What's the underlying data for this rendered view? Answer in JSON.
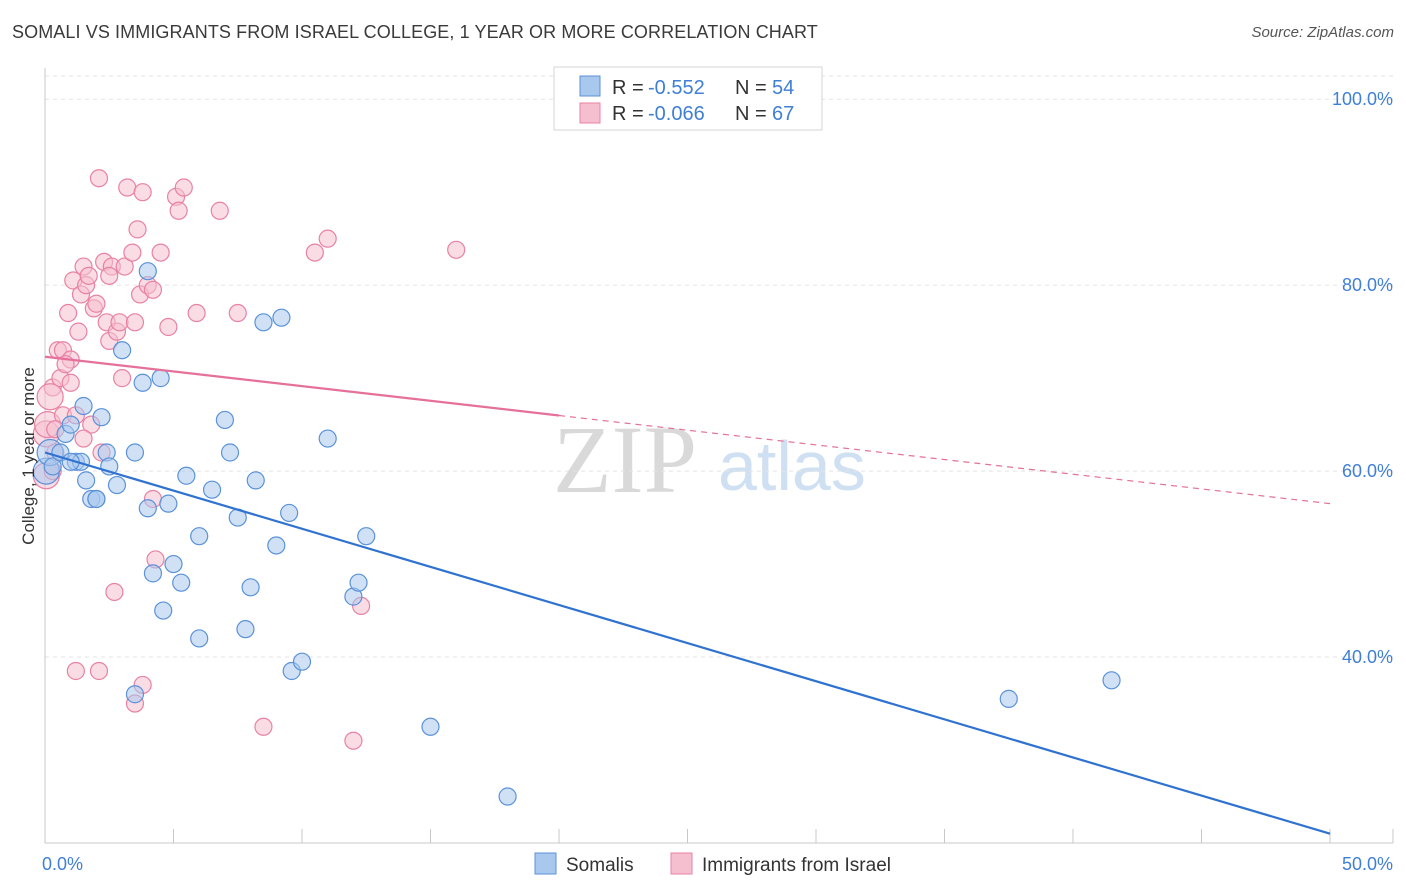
{
  "header": {
    "title": "SOMALI VS IMMIGRANTS FROM ISRAEL COLLEGE, 1 YEAR OR MORE CORRELATION CHART",
    "source": "Source: ZipAtlas.com"
  },
  "watermark": {
    "zip": "ZIP",
    "atlas": "atlas"
  },
  "colors": {
    "somali_fill": "#a9c8ee",
    "somali_stroke": "#5b92d8",
    "somali_line": "#2f72d0",
    "israel_fill": "#f6bfd0",
    "israel_stroke": "#e882a4",
    "israel_line": "#e5709a",
    "tick_text": "#3f7fd6",
    "grid": "#e3e3e3"
  },
  "legend": {
    "rows": [
      {
        "r_label": "R =",
        "r_value": "-0.552",
        "n_label": "N =",
        "n_value": "54"
      },
      {
        "r_label": "R =",
        "r_value": "-0.066",
        "n_label": "N =",
        "n_value": "67"
      }
    ]
  },
  "bottom_legend": {
    "somali": "Somalis",
    "israel": "Immigrants from Israel"
  },
  "chart_data": {
    "type": "scatter",
    "title": "SOMALI VS IMMIGRANTS FROM ISRAEL COLLEGE, 1 YEAR OR MORE CORRELATION CHART",
    "xlabel": "",
    "ylabel": "College, 1 year or more",
    "xlim": [
      0,
      50
    ],
    "ylim": [
      20,
      104
    ],
    "x_tick_labels": [
      "0.0%",
      "50.0%"
    ],
    "y_ticks": [
      40,
      60,
      80,
      100
    ],
    "y_tick_labels": [
      "40.0%",
      "60.0%",
      "80.0%",
      "100.0%"
    ],
    "series": [
      {
        "name": "Somalis",
        "R": -0.552,
        "N": 54,
        "trend": {
          "x": [
            0,
            50
          ],
          "y": [
            62.0,
            21.0
          ],
          "dashed_from": null
        },
        "points": [
          [
            0.05,
            60.0
          ],
          [
            0.2,
            62.0
          ],
          [
            0.3,
            60.5
          ],
          [
            0.6,
            62.0
          ],
          [
            0.8,
            64.0
          ],
          [
            1.0,
            65.0
          ],
          [
            1.2,
            61.0
          ],
          [
            1.4,
            61.0
          ],
          [
            1.5,
            67.0
          ],
          [
            1.6,
            59.0
          ],
          [
            1.8,
            57.0
          ],
          [
            2.0,
            57.0
          ],
          [
            2.2,
            65.8
          ],
          [
            2.4,
            62.0
          ],
          [
            2.5,
            60.5
          ],
          [
            2.8,
            58.5
          ],
          [
            3.0,
            73.0
          ],
          [
            3.5,
            62.0
          ],
          [
            3.8,
            69.5
          ],
          [
            4.0,
            56.0
          ],
          [
            4.2,
            49.0
          ],
          [
            4.5,
            70.0
          ],
          [
            4.6,
            45.0
          ],
          [
            4.8,
            56.5
          ],
          [
            5.0,
            50.0
          ],
          [
            5.3,
            48.0
          ],
          [
            5.5,
            59.5
          ],
          [
            6.0,
            53.0
          ],
          [
            6.5,
            58.0
          ],
          [
            7.0,
            65.5
          ],
          [
            7.2,
            62.0
          ],
          [
            7.5,
            55.0
          ],
          [
            7.8,
            43.0
          ],
          [
            8.0,
            47.5
          ],
          [
            8.2,
            59.0
          ],
          [
            8.5,
            76.0
          ],
          [
            9.0,
            52.0
          ],
          [
            9.2,
            76.5
          ],
          [
            9.5,
            55.5
          ],
          [
            9.6,
            38.5
          ],
          [
            10.0,
            39.5
          ],
          [
            11.0,
            63.5
          ],
          [
            12.0,
            46.5
          ],
          [
            12.2,
            48.0
          ],
          [
            12.5,
            53.0
          ],
          [
            15.0,
            32.5
          ],
          [
            18.0,
            25.0
          ],
          [
            37.5,
            35.5
          ],
          [
            41.5,
            37.5
          ],
          [
            2.0,
            57.0
          ],
          [
            3.5,
            36.0
          ],
          [
            1.0,
            61.0
          ],
          [
            6.0,
            42.0
          ],
          [
            4.0,
            81.5
          ]
        ]
      },
      {
        "name": "Immigrants from Israel",
        "R": -0.066,
        "N": 67,
        "trend": {
          "x": [
            0,
            50
          ],
          "y": [
            72.3,
            56.5
          ],
          "dashed_from": 20
        },
        "points": [
          [
            0.05,
            59.5
          ],
          [
            0.05,
            64.0
          ],
          [
            0.1,
            65.0
          ],
          [
            0.3,
            60.0
          ],
          [
            0.3,
            69.0
          ],
          [
            0.4,
            62.0
          ],
          [
            0.5,
            73.0
          ],
          [
            0.6,
            70.0
          ],
          [
            0.7,
            66.0
          ],
          [
            0.7,
            73.0
          ],
          [
            0.9,
            77.0
          ],
          [
            1.0,
            72.0
          ],
          [
            1.1,
            80.5
          ],
          [
            1.2,
            66.0
          ],
          [
            1.3,
            75.0
          ],
          [
            1.4,
            79.0
          ],
          [
            1.5,
            82.0
          ],
          [
            1.6,
            80.0
          ],
          [
            1.7,
            81.0
          ],
          [
            1.8,
            65.0
          ],
          [
            1.9,
            77.5
          ],
          [
            2.0,
            78.0
          ],
          [
            2.1,
            91.5
          ],
          [
            2.2,
            62.0
          ],
          [
            2.3,
            82.5
          ],
          [
            2.4,
            76.0
          ],
          [
            2.5,
            74.0
          ],
          [
            2.6,
            82.0
          ],
          [
            2.8,
            75.0
          ],
          [
            2.9,
            76.0
          ],
          [
            3.0,
            70.0
          ],
          [
            3.1,
            82.0
          ],
          [
            3.2,
            90.5
          ],
          [
            3.4,
            83.5
          ],
          [
            3.5,
            76.0
          ],
          [
            3.6,
            86.0
          ],
          [
            3.7,
            79.0
          ],
          [
            3.8,
            90.0
          ],
          [
            4.0,
            80.0
          ],
          [
            4.2,
            79.5
          ],
          [
            4.5,
            83.5
          ],
          [
            4.8,
            75.5
          ],
          [
            5.1,
            89.5
          ],
          [
            5.2,
            88.0
          ],
          [
            5.4,
            90.5
          ],
          [
            5.9,
            77.0
          ],
          [
            6.8,
            88.0
          ],
          [
            7.5,
            77.0
          ],
          [
            10.5,
            83.5
          ],
          [
            11.0,
            85.0
          ],
          [
            12.0,
            31.0
          ],
          [
            12.3,
            45.5
          ],
          [
            16.0,
            83.8
          ],
          [
            1.2,
            38.5
          ],
          [
            2.1,
            38.5
          ],
          [
            2.7,
            47.0
          ],
          [
            3.5,
            35.0
          ],
          [
            3.8,
            37.0
          ],
          [
            4.2,
            57.0
          ],
          [
            4.3,
            50.5
          ],
          [
            8.5,
            32.5
          ],
          [
            0.2,
            68.0
          ],
          [
            1.5,
            63.5
          ],
          [
            0.8,
            71.5
          ],
          [
            2.5,
            81.0
          ],
          [
            1.0,
            69.5
          ],
          [
            0.4,
            64.5
          ]
        ]
      }
    ]
  }
}
